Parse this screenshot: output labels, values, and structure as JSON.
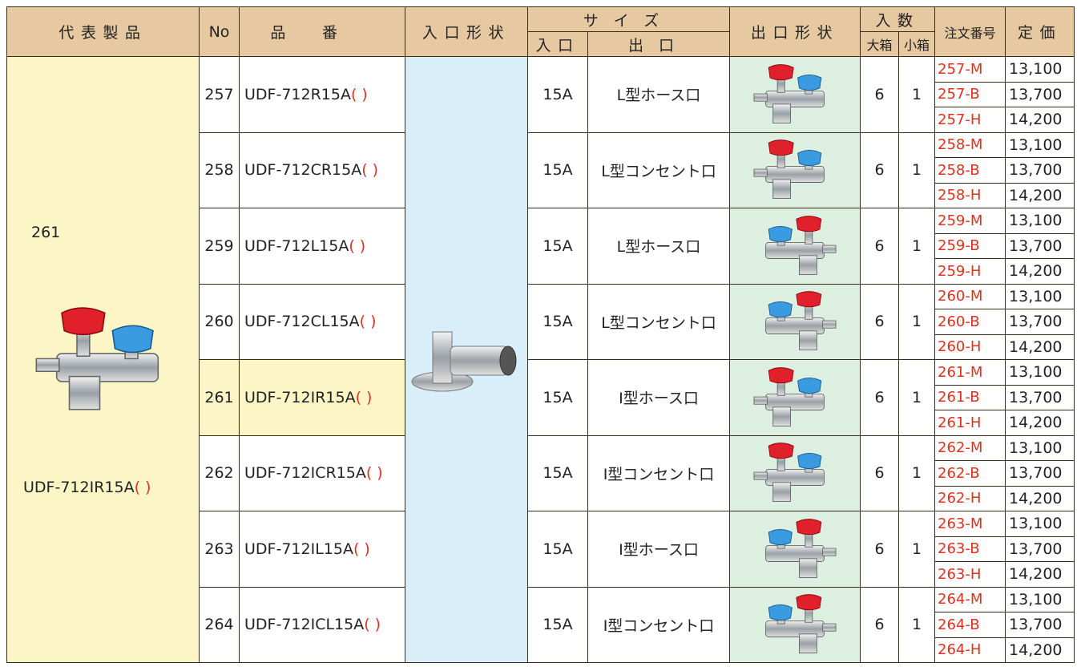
{
  "header": {
    "representative": "代表製品",
    "no": "No",
    "part_number": "品番",
    "inlet_shape": "入口形状",
    "size": "サイズ",
    "size_inlet": "入口",
    "size_outlet": "出口",
    "outlet_shape": "出口形状",
    "quantity": "入数",
    "large_box": "大箱",
    "small_box": "小箱",
    "order_number": "注文番号",
    "price": "定価"
  },
  "representative": {
    "no": "261",
    "model": "UDF-712IR15A",
    "suffix": "( )"
  },
  "rows": [
    {
      "no": "257",
      "model": "UDF-712R15A",
      "suffix": "( )",
      "inlet": "15A",
      "outlet": "L型ホース口",
      "large_box": "6",
      "small_box": "1",
      "orders": [
        {
          "code": "257-M",
          "price": "13,100"
        },
        {
          "code": "257-B",
          "price": "13,700"
        },
        {
          "code": "257-H",
          "price": "14,200"
        }
      ]
    },
    {
      "no": "258",
      "model": "UDF-712CR15A",
      "suffix": "( )",
      "inlet": "15A",
      "outlet": "L型コンセント口",
      "large_box": "6",
      "small_box": "1",
      "orders": [
        {
          "code": "258-M",
          "price": "13,100"
        },
        {
          "code": "258-B",
          "price": "13,700"
        },
        {
          "code": "258-H",
          "price": "14,200"
        }
      ]
    },
    {
      "no": "259",
      "model": "UDF-712L15A",
      "suffix": "( )",
      "inlet": "15A",
      "outlet": "L型ホース口",
      "large_box": "6",
      "small_box": "1",
      "orders": [
        {
          "code": "259-M",
          "price": "13,100"
        },
        {
          "code": "259-B",
          "price": "13,700"
        },
        {
          "code": "259-H",
          "price": "14,200"
        }
      ]
    },
    {
      "no": "260",
      "model": "UDF-712CL15A",
      "suffix": "( )",
      "inlet": "15A",
      "outlet": "L型コンセント口",
      "large_box": "6",
      "small_box": "1",
      "orders": [
        {
          "code": "260-M",
          "price": "13,100"
        },
        {
          "code": "260-B",
          "price": "13,700"
        },
        {
          "code": "260-H",
          "price": "14,200"
        }
      ]
    },
    {
      "no": "261",
      "model": "UDF-712IR15A",
      "suffix": "( )",
      "inlet": "15A",
      "outlet": "I型ホース口",
      "large_box": "6",
      "small_box": "1",
      "orders": [
        {
          "code": "261-M",
          "price": "13,100"
        },
        {
          "code": "261-B",
          "price": "13,700"
        },
        {
          "code": "261-H",
          "price": "14,200"
        }
      ]
    },
    {
      "no": "262",
      "model": "UDF-712ICR15A",
      "suffix": "( )",
      "inlet": "15A",
      "outlet": "I型コンセント口",
      "large_box": "6",
      "small_box": "1",
      "orders": [
        {
          "code": "262-M",
          "price": "13,100"
        },
        {
          "code": "262-B",
          "price": "13,700"
        },
        {
          "code": "262-H",
          "price": "14,200"
        }
      ]
    },
    {
      "no": "263",
      "model": "UDF-712IL15A",
      "suffix": "( )",
      "inlet": "15A",
      "outlet": "I型ホース口",
      "large_box": "6",
      "small_box": "1",
      "orders": [
        {
          "code": "263-M",
          "price": "13,100"
        },
        {
          "code": "263-B",
          "price": "13,700"
        },
        {
          "code": "263-H",
          "price": "14,200"
        }
      ]
    },
    {
      "no": "264",
      "model": "UDF-712ICL15A",
      "suffix": "( )",
      "inlet": "15A",
      "outlet": "I型コンセント口",
      "large_box": "6",
      "small_box": "1",
      "orders": [
        {
          "code": "264-M",
          "price": "13,100"
        },
        {
          "code": "264-B",
          "price": "13,700"
        },
        {
          "code": "264-H",
          "price": "14,200"
        }
      ]
    }
  ]
}
